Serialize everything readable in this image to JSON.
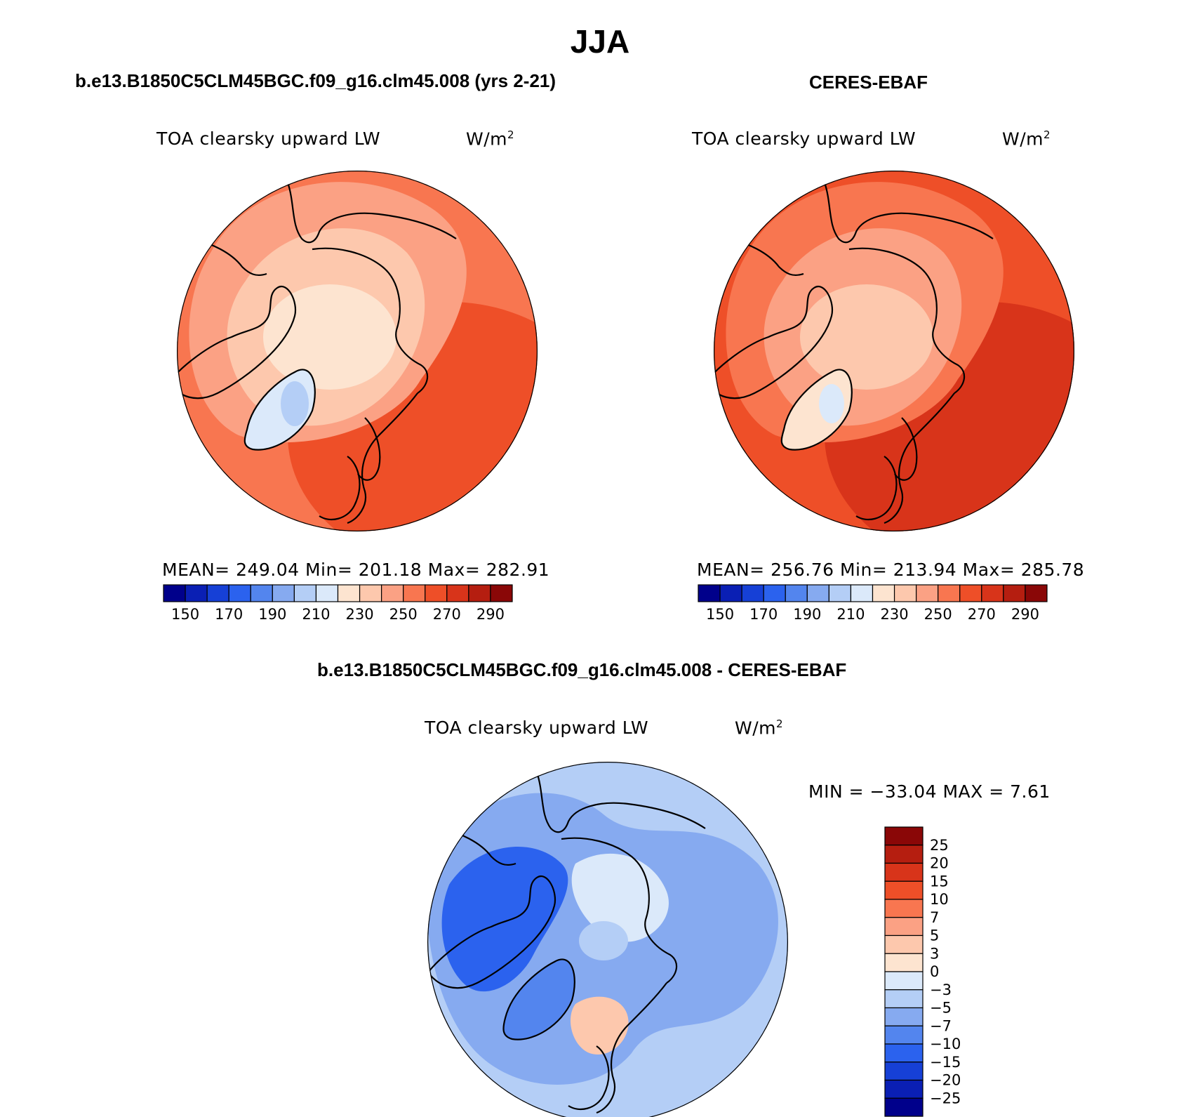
{
  "page": {
    "title": "JJA"
  },
  "panels": {
    "model": {
      "title": "b.e13.B1850C5CLM45BGC.f09_g16.clm45.008 (yrs 2-21)",
      "left_label": "TOA clearsky upward LW",
      "units": "W/m",
      "units_exp": "2",
      "stats": "MEAN= 249.04   Min= 201.18   Max= 282.91"
    },
    "obs": {
      "title": "CERES-EBAF",
      "left_label": "TOA clearsky upward LW",
      "units": "W/m",
      "units_exp": "2",
      "stats": "MEAN= 256.76   Min= 213.94   Max= 285.78"
    },
    "diff": {
      "title": "b.e13.B1850C5CLM45BGC.f09_g16.clm45.008 - CERES-EBAF",
      "left_label": "TOA clearsky upward LW",
      "units": "W/m",
      "units_exp": "2",
      "stats": "MIN = −33.04 MAX =    7.61"
    }
  },
  "colorbars": {
    "abs": {
      "colors": [
        "#00008b",
        "#0a1fb4",
        "#1640d6",
        "#2b62ee",
        "#5385ee",
        "#86aaf0",
        "#b4cef6",
        "#dbe9fa",
        "#fde4d0",
        "#fdc8ad",
        "#fba184",
        "#f87650",
        "#ee4f28",
        "#d8341a",
        "#b51e10",
        "#8a0707"
      ],
      "labels": [
        "150",
        "170",
        "190",
        "210",
        "230",
        "250",
        "270",
        "290"
      ]
    },
    "diff": {
      "colors": [
        "#8a0707",
        "#b51e10",
        "#d8341a",
        "#ee4f28",
        "#f87650",
        "#fba184",
        "#fdc8ad",
        "#fde4d0",
        "#dbe9fa",
        "#b4cef6",
        "#86aaf0",
        "#5385ee",
        "#2b62ee",
        "#1640d6",
        "#0a1fb4",
        "#00008b"
      ],
      "labels": [
        "25",
        "20",
        "15",
        "10",
        "7",
        "5",
        "3",
        "0",
        "−3",
        "−5",
        "−7",
        "−10",
        "−15",
        "−20",
        "−25"
      ]
    }
  },
  "maps": {
    "model": {
      "projection": "north-polar-stereographic",
      "base": "#f87650",
      "outer": "#ee4f28",
      "mid": "#fba184",
      "inner": "#fdc8ad",
      "core": "#fde4d0",
      "greenland": "#dbe9fa",
      "greenland_core": "#b4cef6"
    },
    "obs": {
      "projection": "north-polar-stereographic",
      "base": "#ee4f28",
      "outer": "#d8341a",
      "mid": "#f87650",
      "inner": "#fba184",
      "core": "#fdc8ad",
      "greenland": "#fde4d0",
      "greenland_core": "#dbe9fa"
    },
    "diff": {
      "projection": "north-polar-stereographic",
      "base": "#b4cef6",
      "outer": "#86aaf0",
      "mid": "#2b62ee",
      "inner": "#dbe9fa",
      "core": "#b4cef6",
      "greenland": "#5385ee",
      "greenland_core": "#fdc8ad"
    }
  }
}
